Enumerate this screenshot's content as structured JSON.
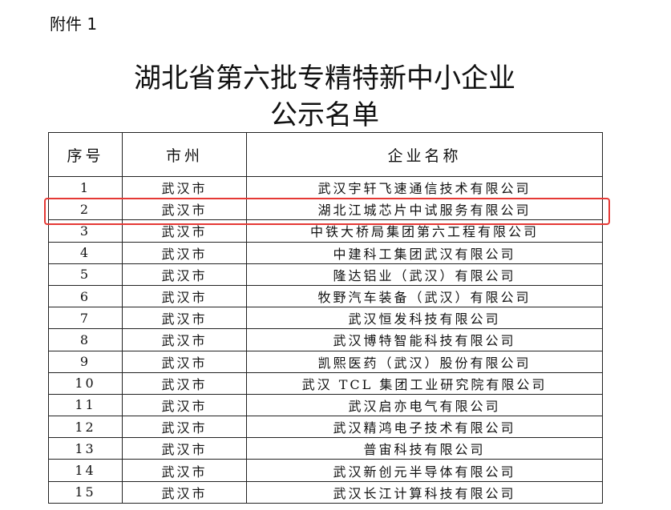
{
  "attachment_label": "附件 1",
  "title_line1": "湖北省第六批专精特新中小企业",
  "title_line2": "公示名单",
  "headers": [
    "序号",
    "市州",
    "企业名称"
  ],
  "highlight_color": "#e53935",
  "highlighted_row": 2,
  "rows": [
    [
      "1",
      "武汉市",
      "武汉宇轩飞速通信技术有限公司"
    ],
    [
      "2",
      "武汉市",
      "湖北江城芯片中试服务有限公司"
    ],
    [
      "3",
      "武汉市",
      "中铁大桥局集团第六工程有限公司"
    ],
    [
      "4",
      "武汉市",
      "中建科工集团武汉有限公司"
    ],
    [
      "5",
      "武汉市",
      "隆达铝业（武汉）有限公司"
    ],
    [
      "6",
      "武汉市",
      "牧野汽车装备（武汉）有限公司"
    ],
    [
      "7",
      "武汉市",
      "武汉恒发科技有限公司"
    ],
    [
      "8",
      "武汉市",
      "武汉博特智能科技有限公司"
    ],
    [
      "9",
      "武汉市",
      "凯熙医药（武汉）股份有限公司"
    ],
    [
      "10",
      "武汉市",
      "武汉 TCL 集团工业研究院有限公司"
    ],
    [
      "11",
      "武汉市",
      "武汉启亦电气有限公司"
    ],
    [
      "12",
      "武汉市",
      "武汉精鸿电子技术有限公司"
    ],
    [
      "13",
      "武汉市",
      "普宙科技有限公司"
    ],
    [
      "14",
      "武汉市",
      "武汉新创元半导体有限公司"
    ],
    [
      "15",
      "武汉市",
      "武汉长江计算科技有限公司"
    ]
  ]
}
